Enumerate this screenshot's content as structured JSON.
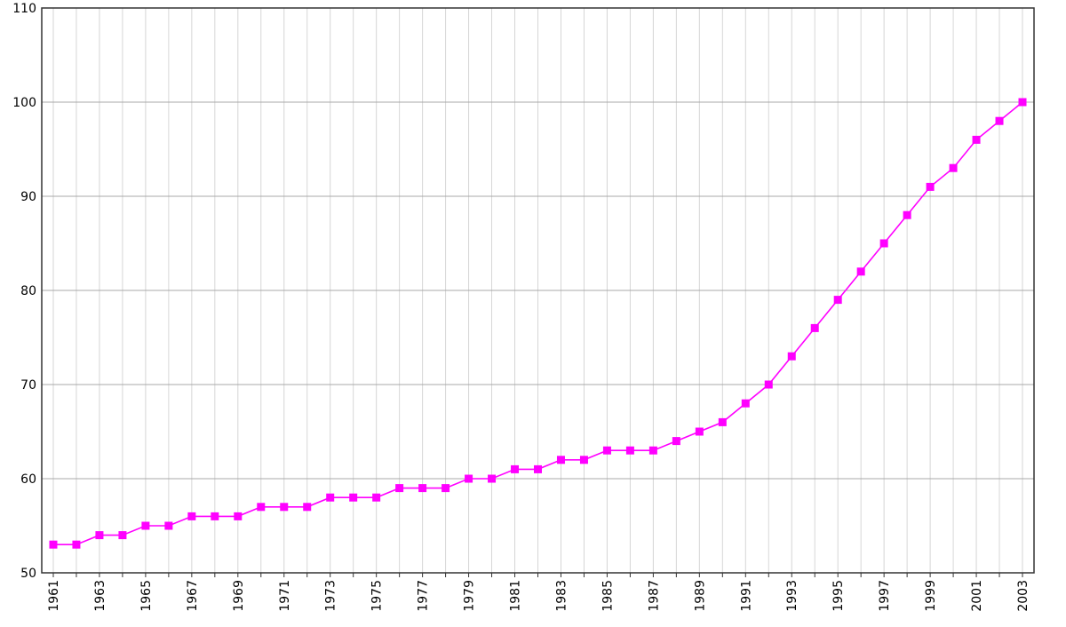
{
  "chart_data": {
    "type": "line",
    "x": [
      1961,
      1962,
      1963,
      1964,
      1965,
      1966,
      1967,
      1968,
      1969,
      1970,
      1971,
      1972,
      1973,
      1974,
      1975,
      1976,
      1977,
      1978,
      1979,
      1980,
      1981,
      1982,
      1983,
      1984,
      1985,
      1986,
      1987,
      1988,
      1989,
      1990,
      1991,
      1992,
      1993,
      1994,
      1995,
      1996,
      1997,
      1998,
      1999,
      2000,
      2001,
      2002,
      2003
    ],
    "series": [
      {
        "values": [
          53,
          53,
          54,
          54,
          55,
          55,
          56,
          56,
          56,
          57,
          57,
          57,
          58,
          58,
          58,
          59,
          59,
          59,
          60,
          60,
          61,
          61,
          62,
          62,
          63,
          63,
          63,
          64,
          65,
          66,
          68,
          70,
          73,
          76,
          79,
          82,
          85,
          88,
          91,
          93,
          96,
          98,
          100
        ],
        "color": "#ff00ff",
        "marker": "square"
      }
    ],
    "xticks": [
      "1961",
      "1963",
      "1965",
      "1967",
      "1969",
      "1971",
      "1973",
      "1975",
      "1977",
      "1979",
      "1981",
      "1983",
      "1985",
      "1987",
      "1989",
      "1991",
      "1993",
      "1995",
      "1997",
      "1999",
      "2001",
      "2003"
    ],
    "yticks": [
      "50",
      "60",
      "70",
      "80",
      "90",
      "100",
      "110"
    ],
    "ylim": [
      50,
      110
    ],
    "xlim": [
      1960.5,
      2003.5
    ],
    "grid": true,
    "legend": "none",
    "title": "",
    "xlabel": "",
    "ylabel": ""
  }
}
